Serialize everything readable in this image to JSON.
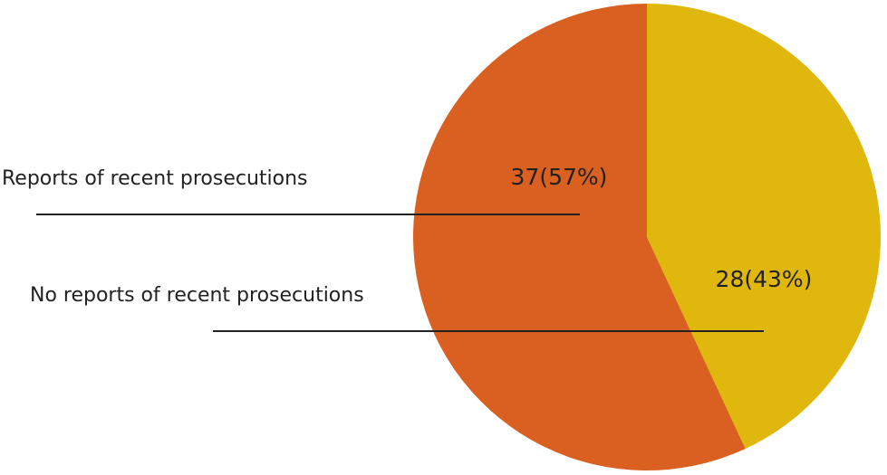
{
  "chart_data": {
    "type": "pie",
    "categories": [
      "No reports of recent prosecutions",
      "Reports of recent prosecutions"
    ],
    "values": [
      28,
      37
    ],
    "value_labels": [
      "28(43%)",
      "37(57%)"
    ],
    "colors": [
      "#e0b70c",
      "#d96020"
    ]
  }
}
